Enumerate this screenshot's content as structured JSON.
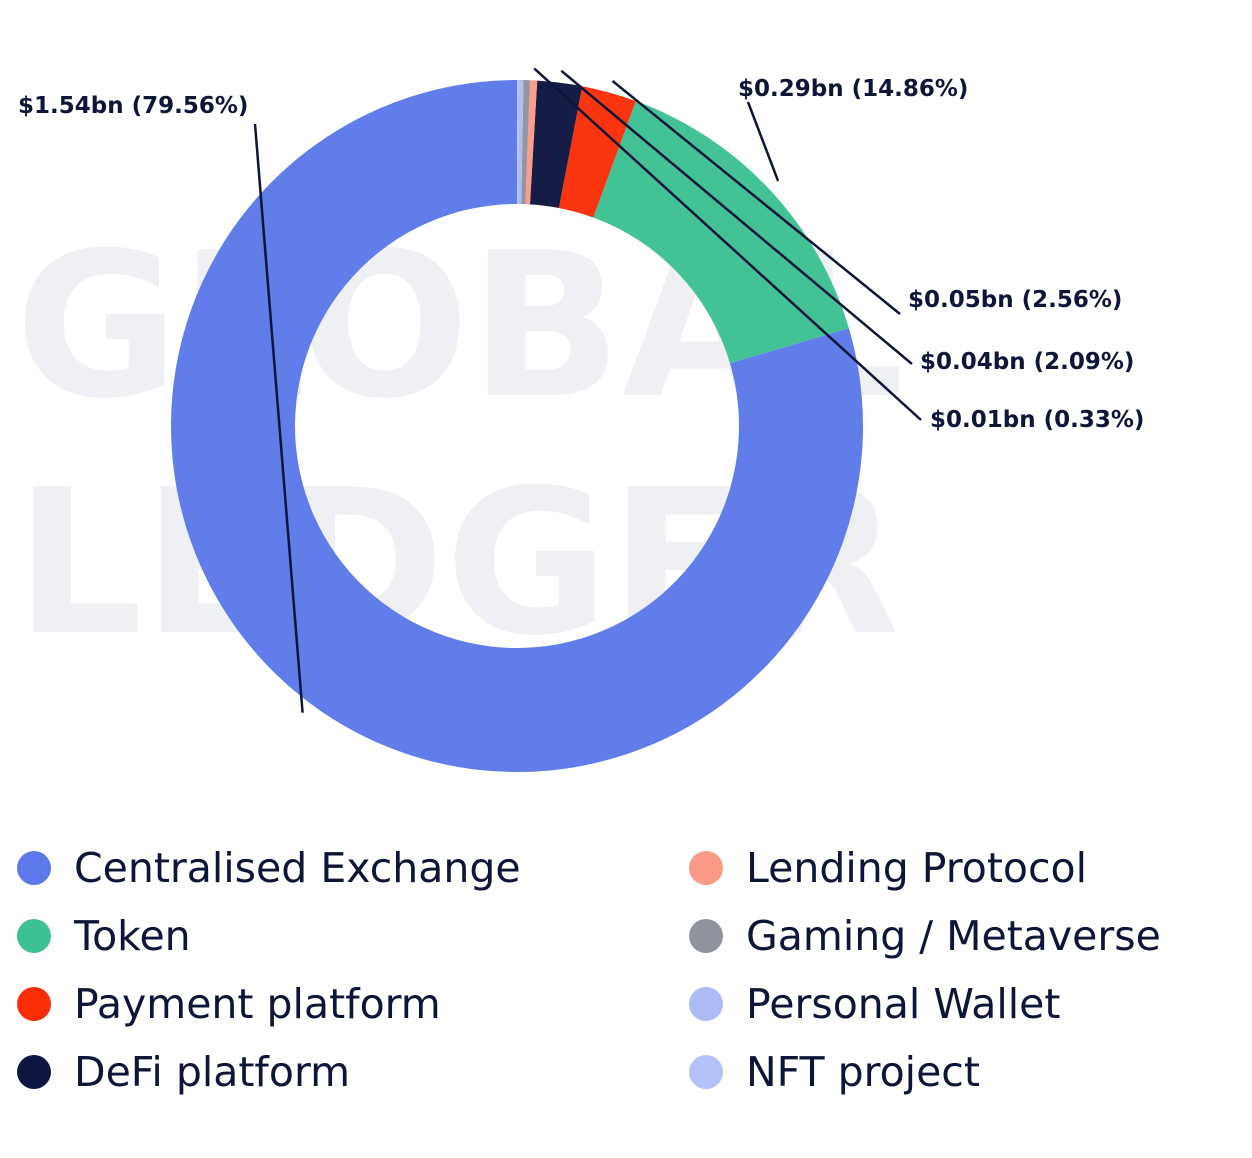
{
  "watermark": {
    "line1": "GLOBAL",
    "line2": "LEDGER"
  },
  "chart_data": {
    "type": "pie",
    "variant": "donut",
    "title": "",
    "start_angle_deg": 90,
    "direction": "counterclockwise",
    "categories": [
      "Centralised Exchange",
      "Token",
      "Payment platform",
      "DeFi platform",
      "Lending Protocol",
      "Gaming / Metaverse",
      "Personal Wallet",
      "NFT project"
    ],
    "values": [
      79.56,
      14.86,
      2.56,
      2.09,
      0.33,
      0.3,
      0.2,
      0.1
    ],
    "colors": [
      "#5b79e8",
      "#3dc192",
      "#fa2d06",
      "#0d1540",
      "#fb9a86",
      "#8f939e",
      "#aebaf5",
      "#b5c2f7"
    ],
    "data_labels": [
      "$1.54bn (79.56%)",
      "$0.29bn (14.86%)",
      "$0.05bn (2.56%)",
      "$0.04bn (2.09%)",
      "$0.01bn (0.33%)",
      "",
      "",
      ""
    ],
    "legend": {
      "placement": "bottom",
      "columns": 2,
      "entries": [
        "Centralised Exchange",
        "Token",
        "Payment platform",
        "DeFi platform",
        "Lending Protocol",
        "Gaming / Metaverse",
        "Personal Wallet",
        "NFT project"
      ]
    }
  }
}
